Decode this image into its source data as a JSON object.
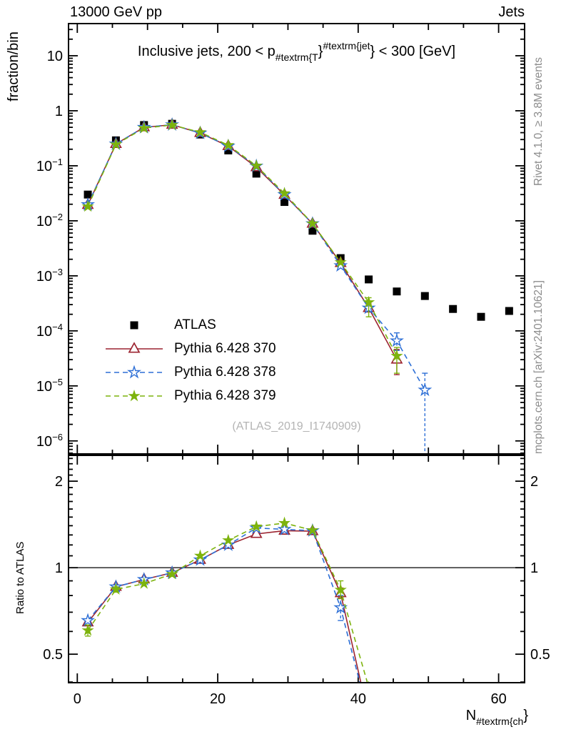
{
  "header": {
    "left": "13000 GeV pp",
    "right": "Jets"
  },
  "panel_title": {
    "prefix": "Inclusive jets, 200 < p",
    "sub": "#textrm{T",
    "brace1": "}",
    "sup": "#textrm{jet",
    "brace2": "}",
    "suffix": " < 300 [GeV]"
  },
  "side_text": {
    "top": "Rivet 4.1.0, ≥ 3.8M events",
    "bottom": "mcplots.cern.ch [arXiv:2401.10621]"
  },
  "watermark": "(ATLAS_2019_I1740909)",
  "xlabel": {
    "base": "N",
    "sub": "#textrm{ch",
    "close": "}"
  },
  "colors": {
    "atlas": "#000000",
    "pythia370": "#9c2430",
    "pythia378": "#2d6fd6",
    "pythia379": "#7db30d",
    "gray_text": "#8c8c8c",
    "watermark": "#b4b4b4"
  },
  "chart_data": [
    {
      "id": "main",
      "type": "line",
      "title": "Inclusive jets, 200 < pT^jet < 300 [GeV]",
      "xlabel": "N_ch",
      "ylabel": "fraction/bin",
      "log_y": true,
      "xlim": [
        -1.25,
        63.7
      ],
      "ylim": [
        5.8e-07,
        38.4
      ],
      "xticks_labeled": [
        0,
        20,
        40,
        60
      ],
      "ytick_decades": [
        1,
        0,
        -1,
        -2,
        -3,
        -4,
        -5,
        -6
      ],
      "x_bins": [
        1.5,
        5.5,
        9.5,
        13.5,
        17.5,
        21.5,
        25.5,
        29.5,
        33.5,
        37.5,
        41.5,
        45.5,
        49.5,
        53.5,
        57.5,
        61.5
      ],
      "series": [
        {
          "name": "ATLAS",
          "color": "#000000",
          "marker": "square",
          "line": "none",
          "values": [
            0.03,
            0.29,
            0.55,
            0.58,
            0.37,
            0.19,
            0.072,
            0.022,
            0.0066,
            0.0021,
            0.00086,
            0.00052,
            0.00043,
            0.00025,
            0.00018,
            0.00023
          ]
        },
        {
          "name": "Pythia 6.428 370",
          "color": "#9c2430",
          "marker": "triangle-open",
          "line": "solid",
          "values": [
            0.0194,
            0.249,
            0.5,
            0.557,
            0.394,
            0.228,
            0.094,
            0.0296,
            0.00885,
            0.00171,
            0.00026,
            3e-05,
            null,
            null,
            null,
            null
          ],
          "err_lo": [
            null,
            null,
            null,
            null,
            null,
            null,
            null,
            null,
            null,
            null,
            0.00022,
            1.6e-05,
            null,
            null,
            null,
            null
          ],
          "err_hi": [
            null,
            null,
            null,
            null,
            null,
            null,
            null,
            null,
            null,
            null,
            0.00031,
            4.6e-05,
            null,
            null,
            null,
            null
          ]
        },
        {
          "name": "Pythia 6.428 378",
          "color": "#2d6fd6",
          "marker": "star-open",
          "line": "dashed",
          "err_dash": true,
          "values": [
            0.0197,
            0.249,
            0.5,
            0.557,
            0.394,
            0.228,
            0.099,
            0.0299,
            0.00888,
            0.00153,
            0.00026,
            6.6e-05,
            8.4e-06,
            null,
            null,
            null
          ],
          "err_lo": [
            null,
            null,
            null,
            null,
            null,
            null,
            null,
            null,
            null,
            null,
            null,
            4.4e-05,
            4e-07,
            null,
            null,
            null
          ],
          "err_hi": [
            null,
            null,
            null,
            null,
            null,
            null,
            null,
            null,
            null,
            null,
            null,
            9.2e-05,
            1.7e-05,
            null,
            null,
            null
          ]
        },
        {
          "name": "Pythia 6.428 379",
          "color": "#7db30d",
          "marker": "star-filled",
          "line": "dashed",
          "values": [
            0.0182,
            0.244,
            0.484,
            0.551,
            0.407,
            0.237,
            0.1,
            0.0315,
            0.00891,
            0.00176,
            0.00033,
            3.5e-05,
            null,
            null,
            null,
            null
          ],
          "err_lo": [
            null,
            null,
            null,
            null,
            null,
            null,
            null,
            null,
            null,
            null,
            0.00018,
            1.7e-05,
            null,
            null,
            null,
            null
          ],
          "err_hi": [
            null,
            null,
            null,
            null,
            null,
            null,
            null,
            null,
            null,
            null,
            0.0004,
            5e-05,
            null,
            null,
            null,
            null
          ]
        }
      ]
    },
    {
      "id": "ratio",
      "type": "line",
      "ylabel": "Ratio to ATLAS",
      "log_y": true,
      "ylim": [
        0.398,
        2.46
      ],
      "yticks_labeled": [
        "2",
        "1",
        "0.5"
      ],
      "reference_line": 1,
      "x_bins": [
        1.5,
        5.5,
        9.5,
        13.5,
        17.5,
        21.5,
        25.5,
        29.5,
        33.5,
        37.5,
        41.5
      ],
      "series": [
        {
          "name": "Pythia 6.428 370",
          "color": "#9c2430",
          "marker": "triangle-open",
          "line": "solid",
          "values": [
            0.645,
            0.858,
            0.91,
            0.96,
            1.065,
            1.2,
            1.31,
            1.345,
            1.34,
            0.815,
            0.302
          ],
          "err_lo": [
            null,
            null,
            null,
            null,
            null,
            null,
            null,
            null,
            null,
            0.785,
            null
          ],
          "err_hi": [
            null,
            null,
            null,
            null,
            null,
            null,
            null,
            null,
            null,
            0.85,
            null
          ]
        },
        {
          "name": "Pythia 6.428 378",
          "color": "#2d6fd6",
          "marker": "star-open",
          "line": "dashed",
          "err_dash": true,
          "values": [
            0.655,
            0.858,
            0.91,
            0.96,
            1.065,
            1.2,
            1.375,
            1.36,
            1.345,
            0.726,
            0.302
          ],
          "err_lo": [
            null,
            null,
            null,
            null,
            null,
            null,
            null,
            null,
            null,
            0.655,
            null
          ],
          "err_hi": [
            null,
            null,
            null,
            null,
            null,
            null,
            null,
            null,
            null,
            0.8,
            null
          ]
        },
        {
          "name": "Pythia 6.428 379",
          "color": "#7db30d",
          "marker": "star-filled",
          "line": "dashed",
          "values": [
            0.605,
            0.84,
            0.88,
            0.95,
            1.1,
            1.245,
            1.39,
            1.43,
            1.35,
            0.837,
            0.384
          ],
          "err_lo": [
            0.578,
            0.822,
            null,
            null,
            null,
            null,
            null,
            null,
            null,
            0.78,
            null
          ],
          "err_hi": [
            0.632,
            0.858,
            null,
            null,
            null,
            null,
            null,
            null,
            null,
            0.9,
            null
          ]
        }
      ]
    }
  ]
}
